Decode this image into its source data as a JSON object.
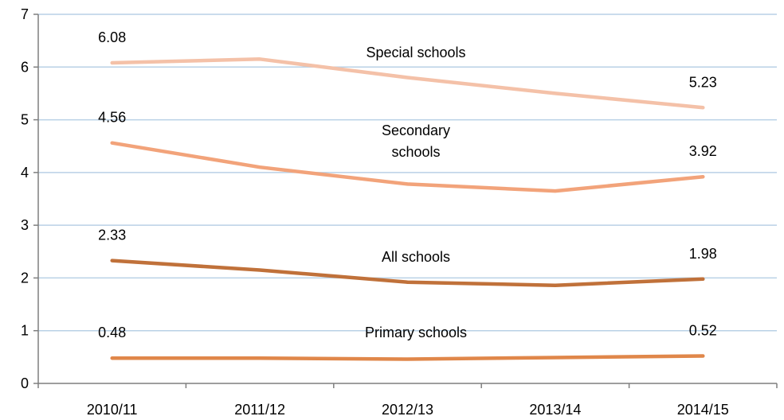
{
  "chart_data": {
    "type": "line",
    "title": "",
    "xlabel": "",
    "ylabel": "",
    "categories": [
      "2010/11",
      "2011/12",
      "2012/13",
      "2013/14",
      "2014/15"
    ],
    "ylim": [
      0,
      7
    ],
    "yticks": [
      0,
      1,
      2,
      3,
      4,
      5,
      6,
      7
    ],
    "grid": true,
    "legend": "none",
    "series": [
      {
        "key": "special",
        "name": "Special schools",
        "values": [
          6.08,
          6.15,
          5.8,
          5.5,
          5.23
        ],
        "color": "#F4C1A8",
        "labels": [
          {
            "index": 0,
            "text": "6.08"
          },
          {
            "index": 4,
            "text": "5.23"
          }
        ]
      },
      {
        "key": "secondary",
        "name": "Secondary schools",
        "name_lines": [
          "Secondary",
          "schools"
        ],
        "values": [
          4.56,
          4.1,
          3.78,
          3.65,
          3.92
        ],
        "color": "#F2A37A",
        "labels": [
          {
            "index": 0,
            "text": "4.56"
          },
          {
            "index": 4,
            "text": "3.92"
          }
        ]
      },
      {
        "key": "all",
        "name": "All schools",
        "values": [
          2.33,
          2.15,
          1.92,
          1.86,
          1.98
        ],
        "color": "#C0713A",
        "labels": [
          {
            "index": 0,
            "text": "2.33"
          },
          {
            "index": 4,
            "text": "1.98"
          }
        ]
      },
      {
        "key": "primary",
        "name": "Primary schools",
        "values": [
          0.48,
          0.48,
          0.46,
          0.49,
          0.52
        ],
        "color": "#E0874A",
        "labels": [
          {
            "index": 0,
            "text": "0.48"
          },
          {
            "index": 4,
            "text": "0.52"
          }
        ]
      }
    ],
    "colors": {
      "axis": "#7F7F7F",
      "grid": "#B9D1E6"
    }
  }
}
